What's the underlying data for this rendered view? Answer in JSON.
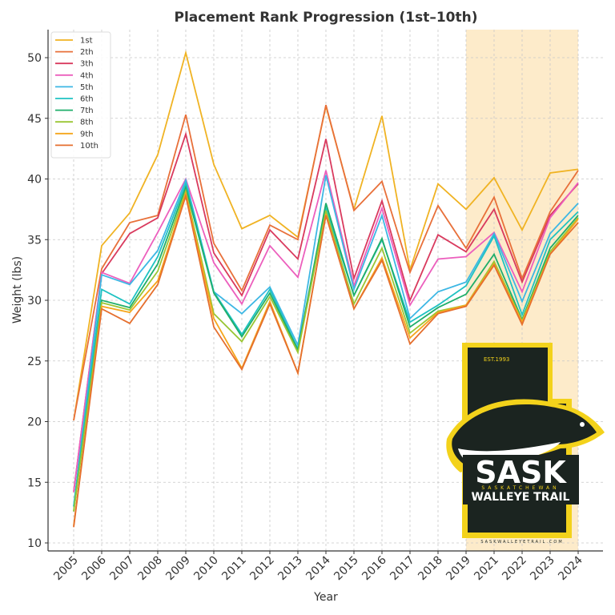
{
  "chart_data": {
    "type": "line",
    "title": "Placement Rank Progression (1st–10th)",
    "xlabel": "Year",
    "ylabel": "Weight (lbs)",
    "ylim": [
      9.5,
      52.5
    ],
    "yticks": [
      10,
      15,
      20,
      25,
      30,
      35,
      40,
      45,
      50
    ],
    "grid": true,
    "legend_position": "upper left",
    "highlight_region": {
      "from": "2019",
      "to": "2024",
      "color": "#fde9c4"
    },
    "x": [
      "2005",
      "2006",
      "2007",
      "2008",
      "2009",
      "2010",
      "2011",
      "2012",
      "2013",
      "2014",
      "2015",
      "2016",
      "2017",
      "2018",
      "2019",
      "2021",
      "2022",
      "2023",
      "2024"
    ],
    "series": [
      {
        "name": "1st",
        "color": "#f0b323",
        "values": [
          20.1,
          34.5,
          37.2,
          42.0,
          50.4,
          41.2,
          35.9,
          37.0,
          35.2,
          46.0,
          37.5,
          45.2,
          32.5,
          39.6,
          37.5,
          40.1,
          35.8,
          40.5,
          40.8
        ]
      },
      {
        "name": "2th",
        "color": "#e8703a",
        "values": [
          20.1,
          32.6,
          36.4,
          37.0,
          45.3,
          34.7,
          30.8,
          36.2,
          35.0,
          46.1,
          37.4,
          39.8,
          32.3,
          37.8,
          34.3,
          38.5,
          31.8,
          37.3,
          40.7
        ]
      },
      {
        "name": "3th",
        "color": "#d93a5e",
        "values": [
          14.2,
          32.2,
          35.5,
          36.8,
          43.7,
          33.9,
          30.4,
          35.8,
          33.4,
          43.3,
          31.8,
          38.2,
          30.0,
          35.4,
          34.0,
          37.5,
          31.5,
          37.0,
          39.6
        ]
      },
      {
        "name": "4th",
        "color": "#ec5fbd",
        "values": [
          14.2,
          32.3,
          31.4,
          35.6,
          40.0,
          33.1,
          29.7,
          34.5,
          31.9,
          40.7,
          31.2,
          37.6,
          29.6,
          33.4,
          33.6,
          35.6,
          30.7,
          36.8,
          39.7
        ]
      },
      {
        "name": "5th",
        "color": "#3db7e4",
        "values": [
          13.0,
          32.1,
          31.3,
          34.1,
          39.9,
          30.7,
          28.9,
          31.1,
          26.3,
          40.3,
          30.9,
          37.0,
          28.5,
          30.7,
          31.5,
          35.5,
          29.9,
          35.5,
          38.0
        ]
      },
      {
        "name": "6th",
        "color": "#1fc2c2",
        "values": [
          13.0,
          30.9,
          29.7,
          33.6,
          39.6,
          30.7,
          27.2,
          30.9,
          26.0,
          37.6,
          30.4,
          35.0,
          28.2,
          29.6,
          31.2,
          35.3,
          28.8,
          35.0,
          37.3
        ]
      },
      {
        "name": "7th",
        "color": "#1fae6a",
        "values": [
          12.6,
          30.0,
          29.4,
          33.0,
          39.3,
          30.6,
          27.0,
          30.6,
          25.9,
          38.0,
          30.4,
          35.1,
          27.8,
          29.4,
          30.5,
          33.8,
          28.4,
          34.3,
          37.0
        ]
      },
      {
        "name": "8th",
        "color": "#9ac634",
        "values": [
          12.6,
          29.8,
          29.2,
          32.4,
          39.0,
          28.9,
          26.6,
          30.3,
          25.7,
          37.4,
          29.7,
          34.3,
          27.3,
          29.1,
          29.6,
          33.2,
          28.3,
          34.0,
          36.8
        ]
      },
      {
        "name": "9th",
        "color": "#f5a61c",
        "values": [
          11.4,
          29.5,
          29.0,
          31.6,
          38.8,
          28.5,
          24.4,
          29.9,
          24.0,
          37.1,
          29.3,
          33.5,
          26.9,
          29.0,
          29.6,
          33.0,
          28.2,
          33.8,
          36.7
        ]
      },
      {
        "name": "10th",
        "color": "#e56f2e",
        "values": [
          11.3,
          29.3,
          28.1,
          31.3,
          38.6,
          27.8,
          24.3,
          29.7,
          24.0,
          37.0,
          29.3,
          33.3,
          26.4,
          28.9,
          29.5,
          32.9,
          28.0,
          33.8,
          36.4
        ]
      }
    ]
  },
  "logo": {
    "name": "SASK",
    "subtitle": "SASKATCHEWAN",
    "tagline": "WALLEYE TRAIL",
    "est": "EST.1993",
    "url": "SASKWALLEYETRAIL.COM"
  }
}
